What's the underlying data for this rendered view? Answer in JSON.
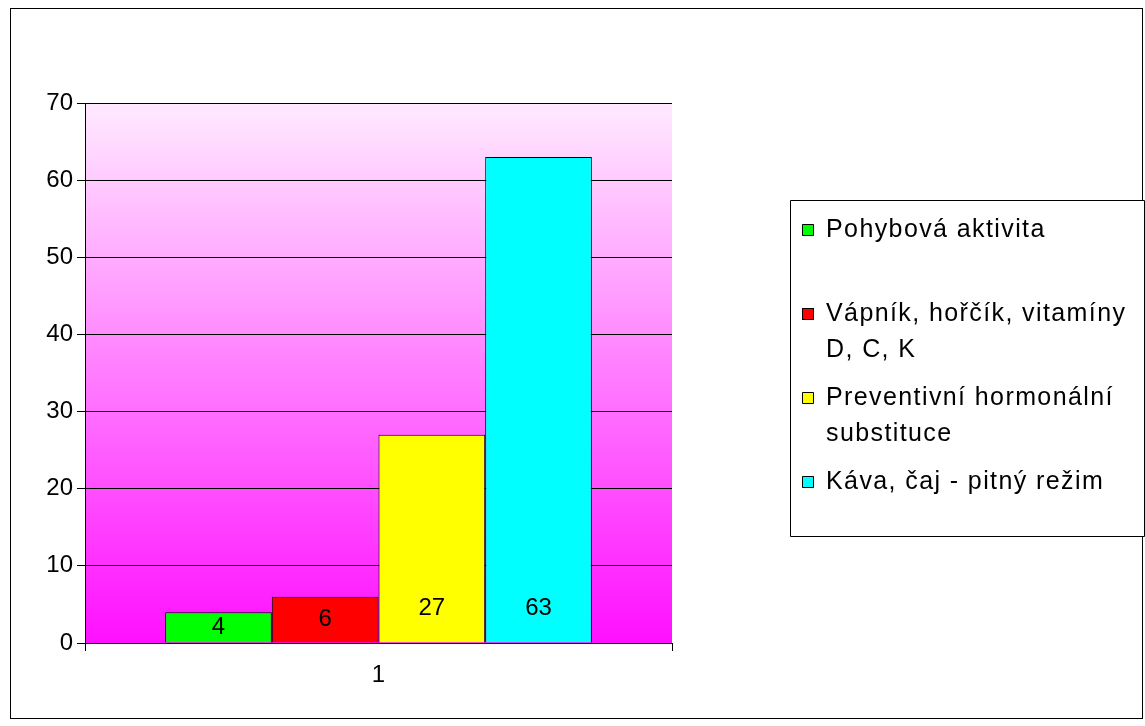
{
  "chart_data": {
    "type": "bar",
    "categories": [
      "1"
    ],
    "series": [
      {
        "name": "Pohybová aktivita",
        "color": "#00ff00",
        "values": [
          4
        ]
      },
      {
        "name": "Vápník, hořčík, vitamíny D, C, K",
        "color": "#ff0000",
        "values": [
          6
        ]
      },
      {
        "name": "Preventivní hormonální substituce",
        "color": "#ffff00",
        "values": [
          27
        ]
      },
      {
        "name": "Káva, čaj - pitný režim",
        "color": "#00ffff",
        "values": [
          63
        ]
      }
    ],
    "ylim": [
      0,
      70
    ],
    "yticks": [
      0,
      10,
      20,
      30,
      40,
      50,
      60,
      70
    ],
    "grid": "y",
    "legend": "right",
    "data_labels": true
  }
}
